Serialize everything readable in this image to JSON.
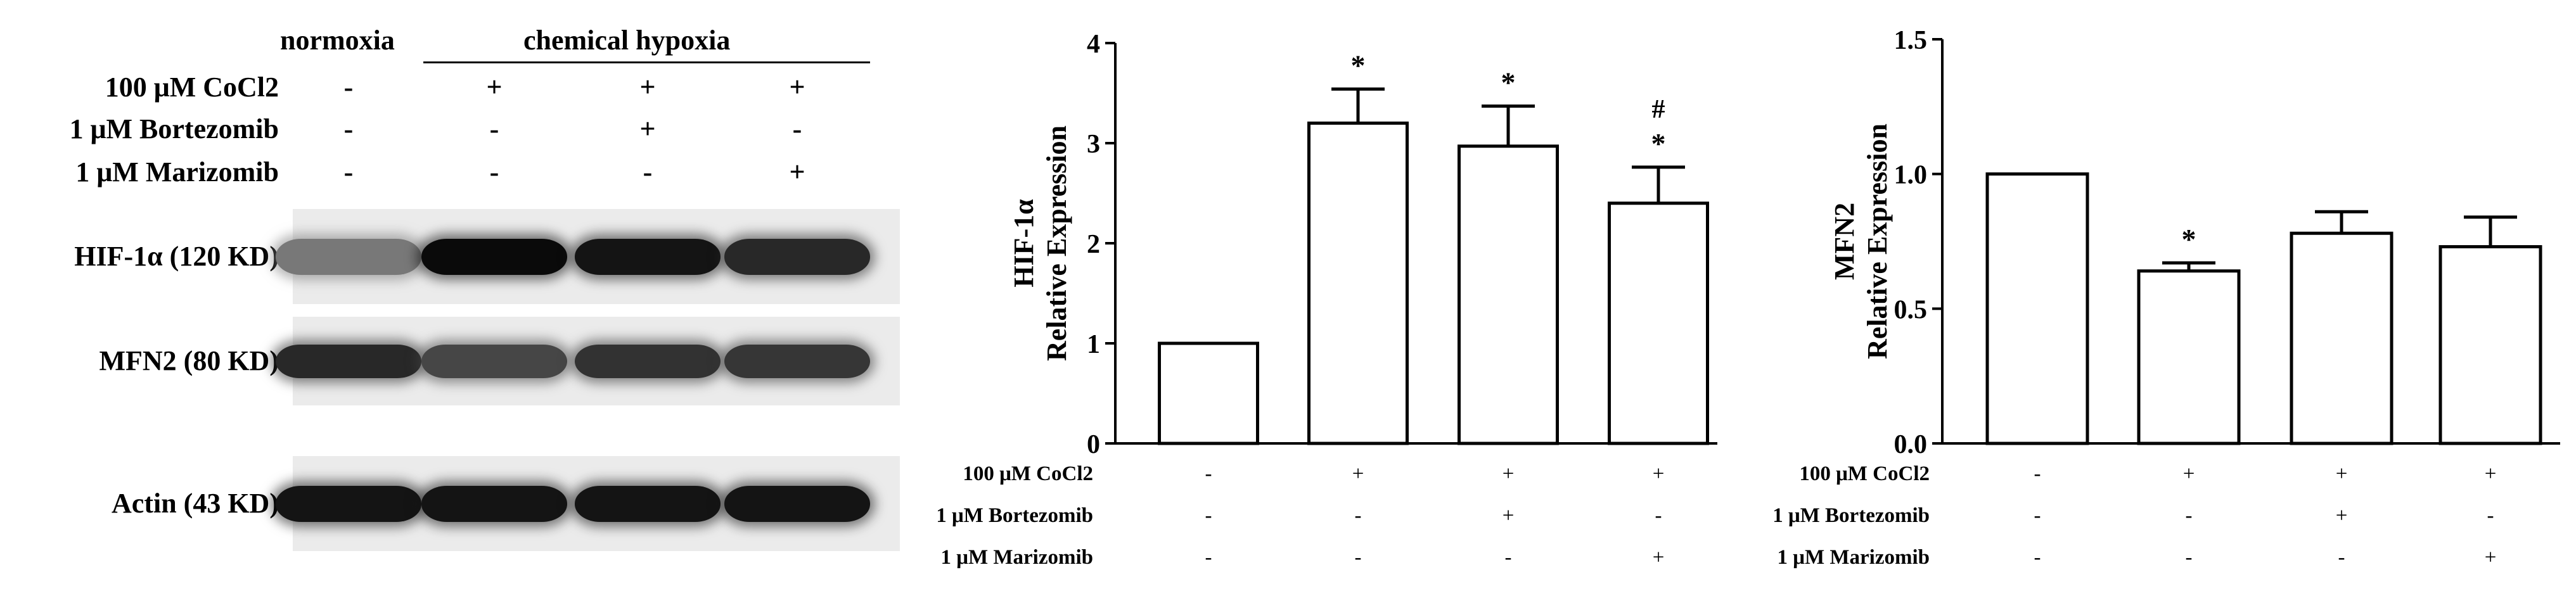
{
  "blot": {
    "group_normoxia": "normoxia",
    "group_hypoxia": "chemical hypoxia",
    "conditions": [
      {
        "label": "100 μM CoCl2",
        "signs": [
          "-",
          "+",
          "+",
          "+"
        ]
      },
      {
        "label": "1 μM Bortezomib",
        "signs": [
          "-",
          "-",
          "+",
          "-"
        ]
      },
      {
        "label": "1 μM Marizomib",
        "signs": [
          "-",
          "-",
          "-",
          "+"
        ]
      }
    ],
    "bands": [
      {
        "label": "HIF-1α (120 KD)",
        "intensity": [
          0.45,
          1.0,
          0.95,
          0.85
        ]
      },
      {
        "label": "MFN2 (80 KD)",
        "intensity": [
          0.85,
          0.7,
          0.8,
          0.78
        ]
      },
      {
        "label": "Actin (43 KD)",
        "intensity": [
          0.95,
          0.95,
          0.95,
          0.95
        ]
      }
    ]
  },
  "chart_data": [
    {
      "type": "bar",
      "ylabel_line1": "HIF-1α",
      "ylabel_line2": "Relative Expression",
      "ylim": [
        0,
        4
      ],
      "yticks": [
        "0",
        "1",
        "2",
        "3",
        "4"
      ],
      "values": [
        1.0,
        3.2,
        2.97,
        2.4
      ],
      "errors": [
        0,
        0.34,
        0.4,
        0.36
      ],
      "annotations": [
        "",
        "*",
        "*",
        "*"
      ],
      "annotations_top": [
        "",
        "",
        "",
        "#"
      ],
      "conditions": [
        {
          "label": "100 μM CoCl2",
          "signs": [
            "-",
            "+",
            "+",
            "+"
          ]
        },
        {
          "label": "1 μM Bortezomib",
          "signs": [
            "-",
            "-",
            "+",
            "-"
          ]
        },
        {
          "label": "1 μM Marizomib",
          "signs": [
            "-",
            "-",
            "-",
            "+"
          ]
        }
      ]
    },
    {
      "type": "bar",
      "ylabel_line1": "MFN2",
      "ylabel_line2": "Relative Expression",
      "ylim": [
        0,
        1.5
      ],
      "yticks": [
        "0.0",
        "0.5",
        "1.0",
        "1.5"
      ],
      "values": [
        1.0,
        0.64,
        0.78,
        0.73
      ],
      "errors": [
        0,
        0.03,
        0.08,
        0.11
      ],
      "annotations": [
        "",
        "*",
        "",
        ""
      ],
      "annotations_top": [
        "",
        "",
        "",
        ""
      ],
      "conditions": [
        {
          "label": "100 μM CoCl2",
          "signs": [
            "-",
            "+",
            "+",
            "+"
          ]
        },
        {
          "label": "1 μM Bortezomib",
          "signs": [
            "-",
            "-",
            "+",
            "-"
          ]
        },
        {
          "label": "1 μM Marizomib",
          "signs": [
            "-",
            "-",
            "-",
            "+"
          ]
        }
      ]
    }
  ]
}
